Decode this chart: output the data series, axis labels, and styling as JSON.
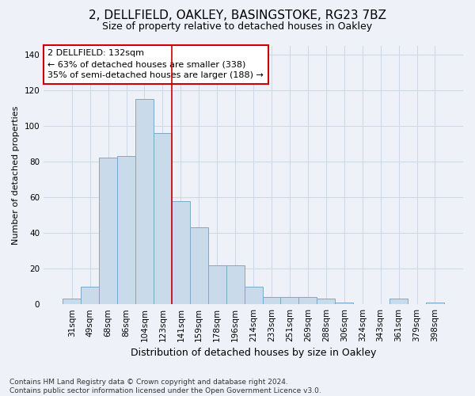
{
  "title1": "2, DELLFIELD, OAKLEY, BASINGSTOKE, RG23 7BZ",
  "title2": "Size of property relative to detached houses in Oakley",
  "xlabel": "Distribution of detached houses by size in Oakley",
  "ylabel": "Number of detached properties",
  "categories": [
    "31sqm",
    "49sqm",
    "68sqm",
    "86sqm",
    "104sqm",
    "123sqm",
    "141sqm",
    "159sqm",
    "178sqm",
    "196sqm",
    "214sqm",
    "233sqm",
    "251sqm",
    "269sqm",
    "288sqm",
    "306sqm",
    "324sqm",
    "343sqm",
    "361sqm",
    "379sqm",
    "398sqm"
  ],
  "values": [
    3,
    10,
    82,
    83,
    115,
    96,
    58,
    43,
    22,
    22,
    10,
    4,
    4,
    4,
    3,
    1,
    0,
    0,
    3,
    0,
    1
  ],
  "bar_color": "#c9daea",
  "bar_edge_color": "#7aaac8",
  "vline_x_index": 5.5,
  "annotation_text_line1": "2 DELLFIELD: 132sqm",
  "annotation_text_line2": "← 63% of detached houses are smaller (338)",
  "annotation_text_line3": "35% of semi-detached houses are larger (188) →",
  "annotation_box_facecolor": "#ffffff",
  "annotation_box_edgecolor": "#cc0000",
  "vline_color": "#cc0000",
  "grid_color": "#cdd8ea",
  "background_color": "#eef2f8",
  "footnote": "Contains HM Land Registry data © Crown copyright and database right 2024.\nContains public sector information licensed under the Open Government Licence v3.0.",
  "ylim": [
    0,
    145
  ],
  "yticks": [
    0,
    20,
    40,
    60,
    80,
    100,
    120,
    140
  ],
  "title1_fontsize": 11,
  "title2_fontsize": 9,
  "ylabel_fontsize": 8,
  "xlabel_fontsize": 9,
  "tick_fontsize": 7.5,
  "annot_fontsize": 8,
  "footnote_fontsize": 6.5
}
